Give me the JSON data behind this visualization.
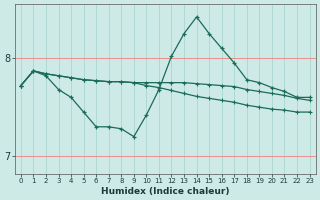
{
  "xlabel": "Humidex (Indice chaleur)",
  "background_color": "#ceeae6",
  "grid_color_v": "#c8e8e4",
  "grid_color_h": "#f0a0a0",
  "line_color": "#1a6b5a",
  "xlim": [
    -0.5,
    23.5
  ],
  "ylim": [
    6.82,
    8.55
  ],
  "xticks": [
    0,
    1,
    2,
    3,
    4,
    5,
    6,
    7,
    8,
    9,
    10,
    11,
    12,
    13,
    14,
    15,
    16,
    17,
    18,
    19,
    20,
    21,
    22,
    23
  ],
  "yticks": [
    7,
    8
  ],
  "line1_x": [
    0,
    1,
    2,
    3,
    4,
    5,
    6,
    7,
    8,
    9,
    10,
    11,
    12,
    13,
    14,
    15,
    16,
    17,
    18,
    19,
    20,
    21,
    22,
    23
  ],
  "line1_y": [
    7.72,
    7.87,
    7.82,
    7.68,
    7.6,
    7.45,
    7.3,
    7.3,
    7.28,
    7.2,
    7.42,
    7.68,
    8.02,
    8.25,
    8.42,
    8.25,
    8.1,
    7.95,
    7.78,
    7.75,
    7.7,
    7.66,
    7.6,
    7.6
  ],
  "line2_x": [
    0,
    1,
    2,
    3,
    4,
    5,
    6,
    7,
    8,
    9,
    10,
    11,
    12,
    13,
    14,
    15,
    16,
    17,
    18,
    19,
    20,
    21,
    22,
    23
  ],
  "line2_y": [
    7.72,
    7.87,
    7.84,
    7.82,
    7.8,
    7.78,
    7.77,
    7.76,
    7.76,
    7.75,
    7.75,
    7.75,
    7.75,
    7.75,
    7.74,
    7.73,
    7.72,
    7.71,
    7.68,
    7.66,
    7.64,
    7.62,
    7.59,
    7.57
  ],
  "line3_x": [
    0,
    1,
    2,
    3,
    4,
    5,
    6,
    7,
    8,
    9,
    10,
    11,
    12,
    13,
    14,
    15,
    16,
    17,
    18,
    19,
    20,
    21,
    22,
    23
  ],
  "line3_y": [
    7.72,
    7.87,
    7.84,
    7.82,
    7.8,
    7.78,
    7.77,
    7.76,
    7.76,
    7.75,
    7.72,
    7.7,
    7.67,
    7.64,
    7.61,
    7.59,
    7.57,
    7.55,
    7.52,
    7.5,
    7.48,
    7.47,
    7.45,
    7.45
  ]
}
